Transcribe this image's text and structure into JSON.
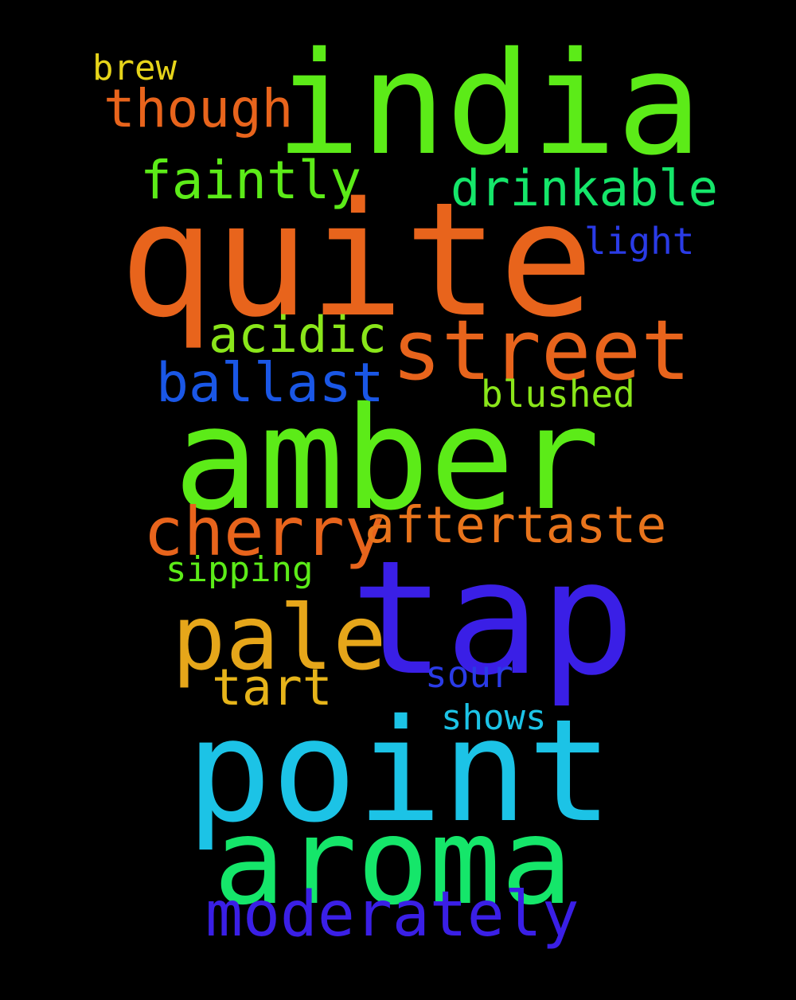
{
  "background": "#000000",
  "words": [
    {
      "text": "india",
      "color": "#5ceb18"
    },
    {
      "text": "quite",
      "color": "#e8641c"
    },
    {
      "text": "amber",
      "color": "#5ceb18"
    },
    {
      "text": "tap",
      "color": "#3a1fe6"
    },
    {
      "text": "point",
      "color": "#1cc3e6"
    },
    {
      "text": "aroma",
      "color": "#15e66a"
    },
    {
      "text": "street",
      "color": "#e8641c"
    },
    {
      "text": "pale",
      "color": "#e6a61a"
    },
    {
      "text": "cherry",
      "color": "#e8641c"
    },
    {
      "text": "moderately",
      "color": "#3a1fe6"
    },
    {
      "text": "aftertaste",
      "color": "#e8741c"
    },
    {
      "text": "though",
      "color": "#e8641c"
    },
    {
      "text": "faintly",
      "color": "#5ceb18"
    },
    {
      "text": "drinkable",
      "color": "#15e66a"
    },
    {
      "text": "ballast",
      "color": "#1a57e6"
    },
    {
      "text": "acidic",
      "color": "#8ae61a"
    },
    {
      "text": "tart",
      "color": "#e6b41a"
    },
    {
      "text": "light",
      "color": "#2a3be6"
    },
    {
      "text": "blushed",
      "color": "#8ae61a"
    },
    {
      "text": "sipping",
      "color": "#5ceb18"
    },
    {
      "text": "sour",
      "color": "#2a3be6"
    },
    {
      "text": "shows",
      "color": "#1cc3e6"
    },
    {
      "text": "brew",
      "color": "#e6d41a"
    }
  ]
}
